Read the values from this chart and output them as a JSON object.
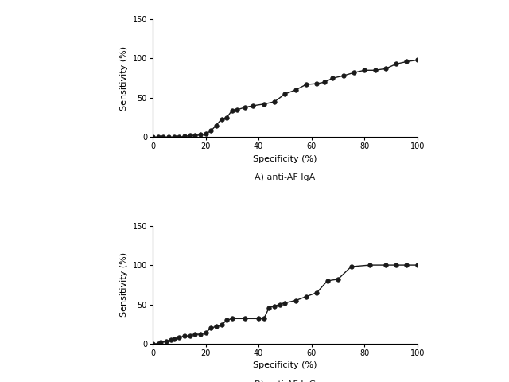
{
  "iga_x": [
    0,
    2,
    4,
    6,
    8,
    10,
    12,
    14,
    16,
    18,
    20,
    22,
    24,
    26,
    28,
    30,
    32,
    35,
    38,
    42,
    46,
    50,
    54,
    58,
    62,
    65,
    68,
    72,
    76,
    80,
    84,
    88,
    92,
    96,
    100
  ],
  "iga_y": [
    0,
    0,
    0,
    0,
    0,
    0,
    1,
    2,
    2,
    3,
    4,
    8,
    15,
    23,
    25,
    34,
    35,
    38,
    40,
    42,
    45,
    55,
    60,
    67,
    68,
    70,
    75,
    78,
    82,
    85,
    85,
    87,
    93,
    96,
    98
  ],
  "igg_x": [
    0,
    2,
    3,
    5,
    7,
    8,
    10,
    12,
    14,
    16,
    18,
    20,
    22,
    24,
    26,
    28,
    30,
    35,
    40,
    42,
    44,
    46,
    48,
    50,
    54,
    58,
    62,
    66,
    70,
    75,
    82,
    88,
    92,
    96,
    100
  ],
  "igg_y": [
    0,
    0,
    2,
    3,
    5,
    6,
    8,
    10,
    10,
    12,
    12,
    14,
    20,
    22,
    24,
    30,
    32,
    32,
    32,
    32,
    46,
    48,
    50,
    52,
    55,
    60,
    65,
    80,
    82,
    98,
    100,
    100,
    100,
    100,
    100
  ],
  "title_a": "A) anti-AF IgA",
  "title_b": "B) anti-AF IgG",
  "xlabel": "Specificity (%)",
  "ylabel": "Sensitivity (%)",
  "xlim": [
    0,
    100
  ],
  "ylim": [
    0,
    150
  ],
  "yticks": [
    0,
    50,
    100,
    150
  ],
  "xticks": [
    0,
    20,
    40,
    60,
    80,
    100
  ],
  "line_color": "#1a1a1a",
  "marker_color": "#1a1a1a",
  "marker_size": 4,
  "line_width": 1.0,
  "bg_color": "#ffffff",
  "font_size_label": 8,
  "font_size_title": 8,
  "font_size_tick": 7
}
